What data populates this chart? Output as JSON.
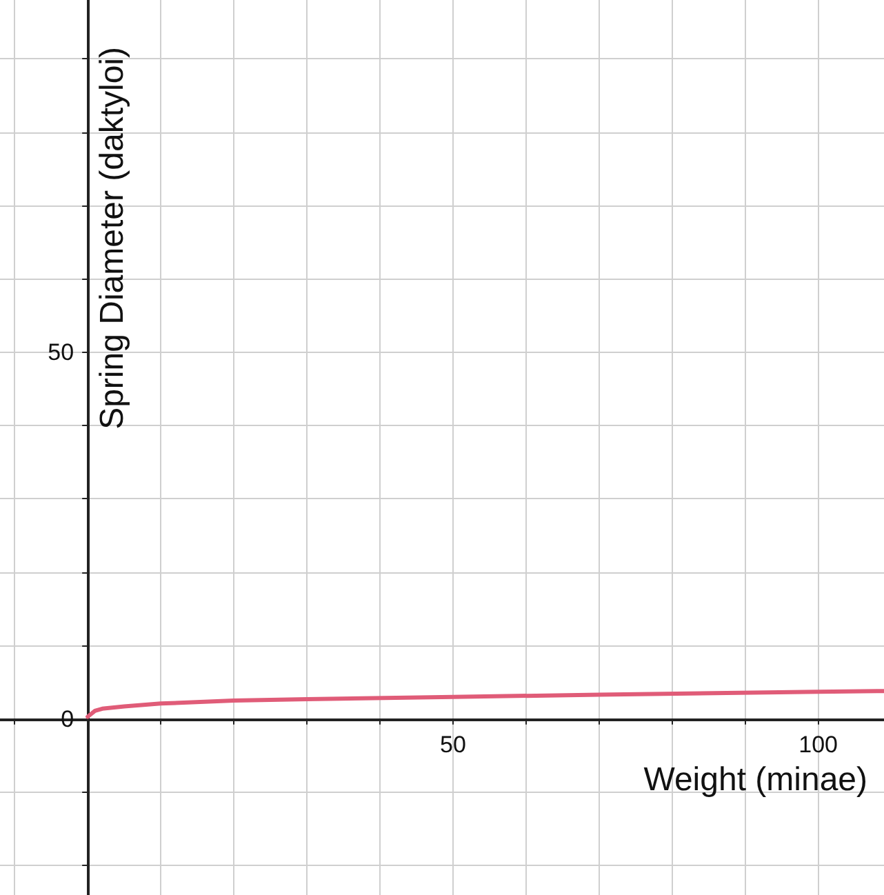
{
  "chart_data": {
    "type": "line",
    "xlabel": "Weight (minae)",
    "ylabel": "Spring Diameter (daktyloi)",
    "x": [
      0,
      1,
      2,
      5,
      10,
      20,
      30,
      50,
      70,
      100,
      109
    ],
    "series": [
      {
        "color": "#e05c78",
        "values": [
          0.3,
          1.1,
          1.4,
          1.7,
          2.1,
          2.5,
          2.7,
          3.0,
          3.3,
          3.7,
          3.8
        ]
      }
    ],
    "xlim": [
      -12,
      109
    ],
    "ylim": [
      -24,
      98
    ],
    "xticks": [
      {
        "value": -10,
        "label": null
      },
      {
        "value": 0,
        "label": null
      },
      {
        "value": 10,
        "label": null
      },
      {
        "value": 20,
        "label": null
      },
      {
        "value": 30,
        "label": null
      },
      {
        "value": 40,
        "label": null
      },
      50,
      {
        "value": 60,
        "label": null
      },
      {
        "value": 70,
        "label": null
      },
      {
        "value": 80,
        "label": null
      },
      {
        "value": 90,
        "label": null
      },
      100
    ],
    "yticks": [
      {
        "value": -20,
        "label": null
      },
      {
        "value": -10,
        "label": null
      },
      0,
      {
        "value": 10,
        "label": null
      },
      {
        "value": 20,
        "label": null
      },
      {
        "value": 30,
        "label": null
      },
      {
        "value": 40,
        "label": null
      },
      50,
      {
        "value": 60,
        "label": null
      },
      {
        "value": 70,
        "label": null
      },
      {
        "value": 80,
        "label": null
      },
      {
        "value": 90,
        "label": null
      }
    ],
    "grid": true,
    "marker": "none",
    "line_style": "solid"
  }
}
